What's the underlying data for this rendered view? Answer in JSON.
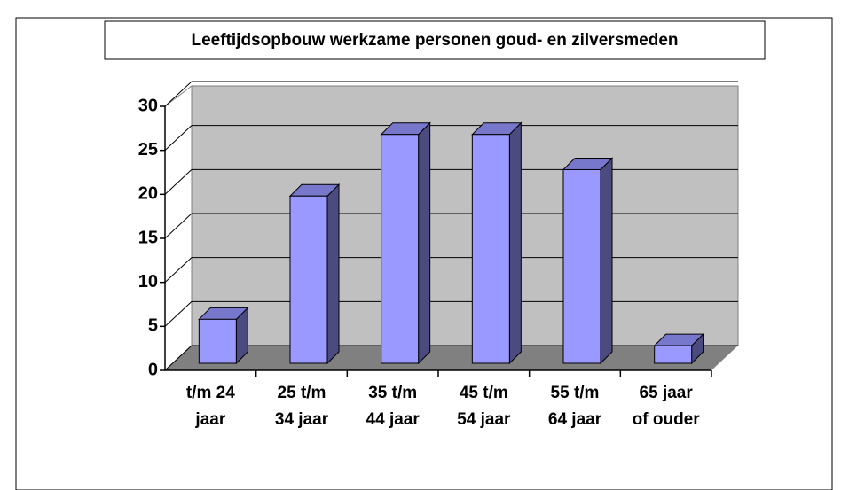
{
  "chart_data": {
    "type": "bar3d",
    "title": "Leeftijdsopbouw werkzame personen goud- en zilversmeden",
    "categories": [
      [
        "t/m 24",
        "jaar"
      ],
      [
        "25 t/m",
        "34 jaar"
      ],
      [
        "35 t/m",
        "44 jaar"
      ],
      [
        "45 t/m",
        "54 jaar"
      ],
      [
        "55 t/m",
        "64 jaar"
      ],
      [
        "65 jaar",
        "of ouder"
      ]
    ],
    "values": [
      5,
      19,
      26,
      26,
      22,
      2
    ],
    "color": "#9999ff",
    "ylim": [
      0,
      30
    ],
    "yticks": [
      0,
      5,
      10,
      15,
      20,
      25,
      30
    ],
    "grid": true
  }
}
